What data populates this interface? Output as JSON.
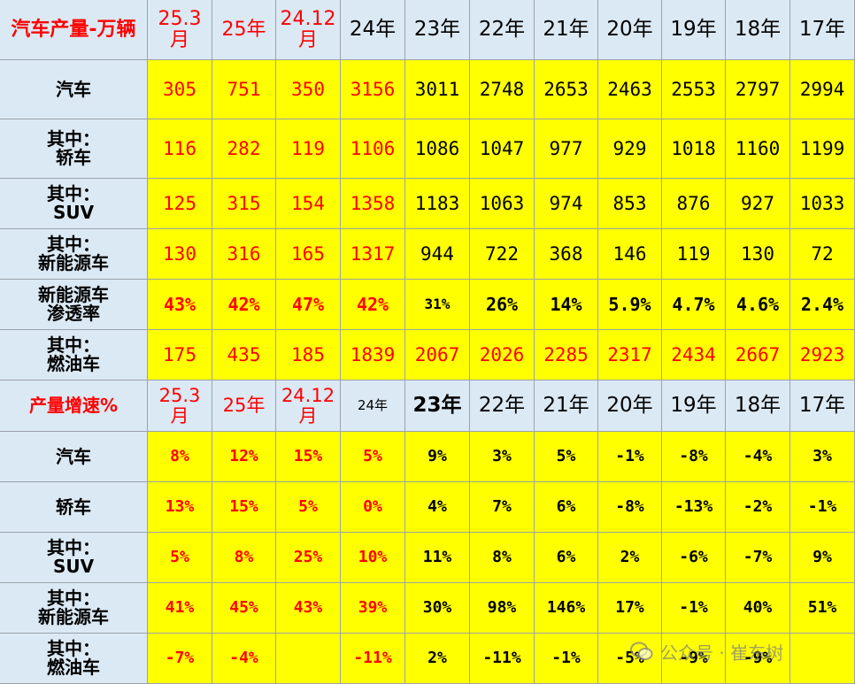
{
  "colors": {
    "red": "#ff0000",
    "black": "#000000",
    "yellow": "#ffff00",
    "header_bg": "#dbe9f4"
  },
  "top_table": {
    "title": "汽车产量-万辆",
    "columns": [
      "25.3\n月",
      "25年",
      "24.12\n月",
      "24年",
      "23年",
      "22年",
      "21年",
      "20年",
      "19年",
      "18年",
      "17年"
    ],
    "rows": [
      {
        "label": "汽车",
        "values": [
          "305",
          "751",
          "350",
          "3156",
          "3011",
          "2748",
          "2653",
          "2463",
          "2553",
          "2797",
          "2994"
        ]
      },
      {
        "label": "其中：\n轿车",
        "values": [
          "116",
          "282",
          "119",
          "1106",
          "1086",
          "1047",
          "977",
          "929",
          "1018",
          "1160",
          "1199"
        ]
      },
      {
        "label": "其中：\nSUV",
        "values": [
          "125",
          "315",
          "154",
          "1358",
          "1183",
          "1063",
          "974",
          "853",
          "876",
          "927",
          "1033"
        ]
      },
      {
        "label": "其中：\n新能源车",
        "values": [
          "130",
          "316",
          "165",
          "1317",
          "944",
          "722",
          "368",
          "146",
          "119",
          "130",
          "72"
        ]
      },
      {
        "label": "新能源车\n渗透率",
        "values": [
          "43%",
          "42%",
          "47%",
          "42%",
          "31%",
          "26%",
          "14%",
          "5.9%",
          "4.7%",
          "4.6%",
          "2.4%"
        ]
      },
      {
        "label": "其中：\n燃油车",
        "values": [
          "175",
          "435",
          "185",
          "1839",
          "2067",
          "2026",
          "2285",
          "2317",
          "2434",
          "2667",
          "2923"
        ]
      }
    ]
  },
  "bottom_table": {
    "title": "产量增速%",
    "columns": [
      "25.3\n月",
      "25年",
      "24.12\n月",
      "24年",
      "23年",
      "22年",
      "21年",
      "20年",
      "19年",
      "18年",
      "17年"
    ],
    "rows": [
      {
        "label": "汽车",
        "values": [
          "8%",
          "12%",
          "15%",
          "5%",
          "9%",
          "3%",
          "5%",
          "-1%",
          "-8%",
          "-4%",
          "3%"
        ]
      },
      {
        "label": "轿车",
        "values": [
          "13%",
          "15%",
          "5%",
          "0%",
          "4%",
          "7%",
          "6%",
          "-8%",
          "-13%",
          "-2%",
          "-1%"
        ]
      },
      {
        "label": "其中：\nSUV",
        "values": [
          "5%",
          "8%",
          "25%",
          "10%",
          "11%",
          "8%",
          "6%",
          "2%",
          "-6%",
          "-7%",
          "9%"
        ]
      },
      {
        "label": "其中：\n新能源车",
        "values": [
          "41%",
          "45%",
          "43%",
          "39%",
          "30%",
          "98%",
          "146%",
          "17%",
          "-1%",
          "40%",
          "51%"
        ]
      },
      {
        "label": "其中：\n燃油车",
        "values": [
          "-7%",
          "-4%",
          "",
          "-11%",
          "2%",
          "-11%",
          "-1%",
          "-5%",
          "-9%",
          "-9%",
          ""
        ]
      }
    ]
  },
  "watermark": {
    "text": "公众号 · 崔东树"
  }
}
